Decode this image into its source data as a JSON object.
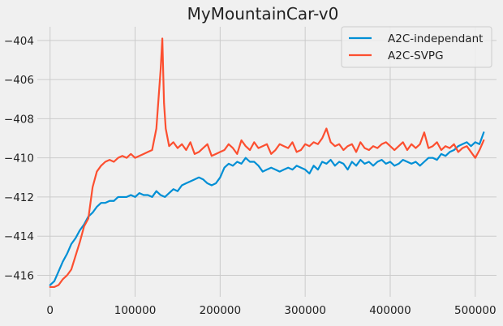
{
  "chart_data": {
    "type": "line",
    "title": "MyMountainCar-v0",
    "xlabel": "",
    "ylabel": "",
    "xlim": [
      -15000,
      525000
    ],
    "ylim": [
      -417.1,
      -403.3
    ],
    "xticks": [
      0,
      100000,
      200000,
      300000,
      400000,
      500000
    ],
    "xtick_labels": [
      "0",
      "100000",
      "200000",
      "300000",
      "400000",
      "500000"
    ],
    "yticks": [
      -416,
      -414,
      -412,
      -410,
      -408,
      -406,
      -404
    ],
    "ytick_labels": [
      "−416",
      "−414",
      "−412",
      "−410",
      "−408",
      "−406",
      "−404"
    ],
    "grid": true,
    "legend_position": "top-right",
    "series": [
      {
        "name": "A2C-independant",
        "color": "#008fd5",
        "x": [
          0,
          5000,
          10000,
          15000,
          20000,
          25000,
          30000,
          35000,
          40000,
          45000,
          50000,
          55000,
          60000,
          65000,
          70000,
          75000,
          80000,
          85000,
          90000,
          95000,
          100000,
          105000,
          110000,
          115000,
          120000,
          125000,
          130000,
          135000,
          140000,
          145000,
          150000,
          155000,
          160000,
          165000,
          170000,
          175000,
          180000,
          185000,
          190000,
          195000,
          200000,
          205000,
          210000,
          215000,
          220000,
          225000,
          230000,
          235000,
          240000,
          245000,
          250000,
          255000,
          260000,
          265000,
          270000,
          275000,
          280000,
          285000,
          290000,
          295000,
          300000,
          305000,
          310000,
          315000,
          320000,
          325000,
          330000,
          335000,
          340000,
          345000,
          350000,
          355000,
          360000,
          365000,
          370000,
          375000,
          380000,
          385000,
          390000,
          395000,
          400000,
          405000,
          410000,
          415000,
          420000,
          425000,
          430000,
          435000,
          440000,
          445000,
          450000,
          455000,
          460000,
          465000,
          470000,
          475000,
          480000,
          485000,
          490000,
          495000,
          500000,
          505000,
          510000
        ],
        "values": [
          -416.5,
          -416.3,
          -415.8,
          -415.3,
          -414.9,
          -414.4,
          -414.1,
          -413.7,
          -413.4,
          -413.0,
          -412.8,
          -412.5,
          -412.3,
          -412.3,
          -412.2,
          -412.2,
          -412.0,
          -412.0,
          -412.0,
          -411.9,
          -412.0,
          -411.8,
          -411.9,
          -411.9,
          -412.0,
          -411.7,
          -411.9,
          -412.0,
          -411.8,
          -411.6,
          -411.7,
          -411.4,
          -411.3,
          -411.2,
          -411.1,
          -411.0,
          -411.1,
          -411.3,
          -411.4,
          -411.3,
          -411.0,
          -410.5,
          -410.3,
          -410.4,
          -410.2,
          -410.3,
          -410.0,
          -410.2,
          -410.2,
          -410.4,
          -410.7,
          -410.6,
          -410.5,
          -410.6,
          -410.7,
          -410.6,
          -410.5,
          -410.6,
          -410.4,
          -410.5,
          -410.6,
          -410.8,
          -410.4,
          -410.6,
          -410.2,
          -410.3,
          -410.1,
          -410.4,
          -410.2,
          -410.3,
          -410.6,
          -410.2,
          -410.4,
          -410.1,
          -410.3,
          -410.2,
          -410.4,
          -410.2,
          -410.1,
          -410.3,
          -410.2,
          -410.4,
          -410.3,
          -410.1,
          -410.2,
          -410.3,
          -410.2,
          -410.4,
          -410.2,
          -410.0,
          -410.0,
          -410.1,
          -409.8,
          -409.9,
          -409.7,
          -409.6,
          -409.4,
          -409.3,
          -409.2,
          -409.4,
          -409.2,
          -409.3,
          -408.7
        ]
      },
      {
        "name": "A2C-SVPG",
        "color": "#fc4f30",
        "x": [
          0,
          5000,
          10000,
          15000,
          20000,
          25000,
          30000,
          35000,
          40000,
          45000,
          50000,
          55000,
          60000,
          65000,
          70000,
          75000,
          80000,
          85000,
          90000,
          95000,
          100000,
          105000,
          110000,
          115000,
          120000,
          125000,
          130000,
          132000,
          134000,
          136000,
          140000,
          145000,
          150000,
          155000,
          160000,
          165000,
          170000,
          175000,
          180000,
          185000,
          190000,
          195000,
          200000,
          205000,
          210000,
          215000,
          220000,
          225000,
          230000,
          235000,
          240000,
          245000,
          250000,
          255000,
          260000,
          265000,
          270000,
          275000,
          280000,
          285000,
          290000,
          295000,
          300000,
          305000,
          310000,
          315000,
          320000,
          325000,
          330000,
          335000,
          340000,
          345000,
          350000,
          355000,
          360000,
          365000,
          370000,
          375000,
          380000,
          385000,
          390000,
          395000,
          400000,
          405000,
          410000,
          415000,
          420000,
          425000,
          430000,
          435000,
          440000,
          445000,
          450000,
          455000,
          460000,
          465000,
          470000,
          475000,
          480000,
          485000,
          490000,
          495000,
          500000,
          505000,
          510000
        ],
        "values": [
          -416.6,
          -416.6,
          -416.5,
          -416.2,
          -416.0,
          -415.7,
          -415.0,
          -414.3,
          -413.5,
          -413.1,
          -411.5,
          -410.7,
          -410.4,
          -410.2,
          -410.1,
          -410.2,
          -410.0,
          -409.9,
          -410.0,
          -409.8,
          -410.0,
          -409.9,
          -409.8,
          -409.7,
          -409.6,
          -408.5,
          -405.5,
          -403.9,
          -407.2,
          -408.5,
          -409.4,
          -409.2,
          -409.5,
          -409.3,
          -409.6,
          -409.2,
          -409.8,
          -409.7,
          -409.5,
          -409.3,
          -409.9,
          -409.8,
          -409.7,
          -409.6,
          -409.3,
          -409.5,
          -409.8,
          -409.1,
          -409.4,
          -409.6,
          -409.2,
          -409.5,
          -409.4,
          -409.3,
          -409.8,
          -409.6,
          -409.3,
          -409.4,
          -409.5,
          -409.2,
          -409.7,
          -409.6,
          -409.3,
          -409.4,
          -409.2,
          -409.3,
          -409.0,
          -408.5,
          -409.2,
          -409.4,
          -409.3,
          -409.6,
          -409.4,
          -409.3,
          -409.7,
          -409.2,
          -409.5,
          -409.6,
          -409.4,
          -409.5,
          -409.3,
          -409.2,
          -409.4,
          -409.6,
          -409.4,
          -409.2,
          -409.6,
          -409.3,
          -409.5,
          -409.3,
          -408.7,
          -409.5,
          -409.4,
          -409.2,
          -409.6,
          -409.4,
          -409.5,
          -409.3,
          -409.7,
          -409.5,
          -409.4,
          -409.7,
          -410.0,
          -409.6,
          -409.1
        ]
      }
    ]
  },
  "colors": {
    "background": "#f0f0f0",
    "grid": "#cbcbcb",
    "text": "#222222"
  }
}
